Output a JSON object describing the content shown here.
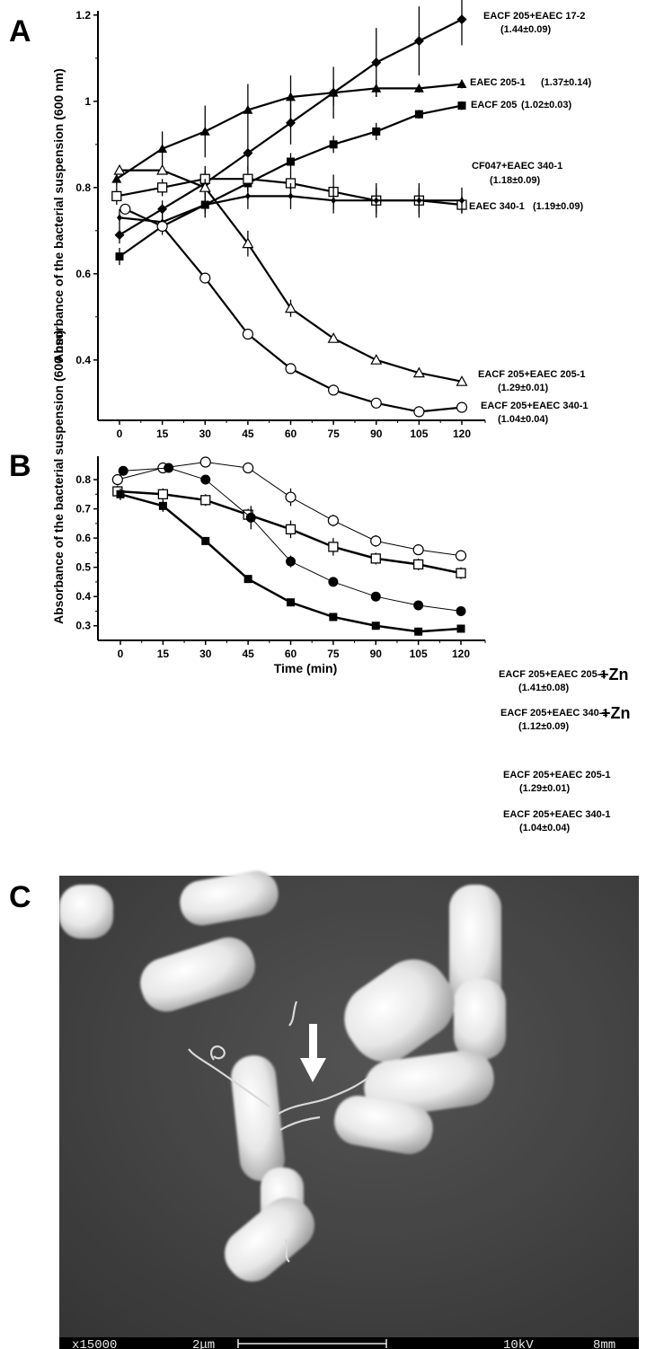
{
  "panels": {
    "a": {
      "letter": "A"
    },
    "b": {
      "letter": "B"
    },
    "c": {
      "letter": "C"
    }
  },
  "chart_data": [
    {
      "type": "line",
      "panel": "A",
      "ylabel": "Absorbance of the bacterial suspension (600 nm)",
      "xlabel": "",
      "x": [
        0,
        15,
        30,
        45,
        60,
        75,
        90,
        105,
        120
      ],
      "xlim": [
        -5,
        125
      ],
      "ylim": [
        0.26,
        1.21
      ],
      "yticks": [
        0.4,
        0.6,
        0.8,
        1,
        1.2
      ],
      "ytick_labels": [
        "0.4",
        "0.6",
        "0.8",
        "1",
        "1.2"
      ],
      "xticks": [
        0,
        15,
        30,
        45,
        60,
        75,
        90,
        105,
        120
      ],
      "xtick_labels": [
        "0",
        "15",
        "30",
        "45",
        "60",
        "75",
        "90",
        "105",
        "120"
      ],
      "series": [
        {
          "name": "EACF 205+EAEC 17-2",
          "note": "(1.44±0.09)",
          "marker": "diamond-filled",
          "x": [
            0,
            15,
            30,
            45,
            60,
            75,
            90,
            105,
            120
          ],
          "values": [
            0.69,
            0.75,
            0.81,
            0.88,
            0.95,
            1.02,
            1.09,
            1.14,
            1.19
          ],
          "err": [
            0.02,
            0.02,
            0.03,
            0.04,
            0.05,
            0.06,
            0.08,
            0.08,
            0.06
          ]
        },
        {
          "name": "EAEC 205-1",
          "note": "(1.37±0.14)",
          "marker": "triangle-filled",
          "x": [
            -1,
            15,
            30,
            45,
            60,
            75,
            90,
            105,
            120
          ],
          "values": [
            0.82,
            0.89,
            0.93,
            0.98,
            1.01,
            1.02,
            1.03,
            1.03,
            1.04
          ],
          "err": [
            0.02,
            0.04,
            0.06,
            0.06,
            0.05,
            0.03,
            0.02,
            0.01,
            0.01
          ]
        },
        {
          "name": "EACF 205",
          "note": "(1.02±0.03)",
          "marker": "square-filled",
          "x": [
            0,
            15,
            30,
            45,
            60,
            75,
            90,
            105,
            120
          ],
          "values": [
            0.64,
            0.71,
            0.76,
            0.81,
            0.86,
            0.9,
            0.93,
            0.97,
            0.99
          ],
          "err": [
            0.02,
            0.02,
            0.02,
            0.02,
            0.02,
            0.02,
            0.02,
            0.01,
            0.01
          ]
        },
        {
          "name": "CF047+EAEC 340-1",
          "note": "(1.18±0.09)",
          "marker": "square-open",
          "x": [
            -1,
            15,
            30,
            45,
            60,
            75,
            90,
            105,
            120
          ],
          "values": [
            0.78,
            0.8,
            0.82,
            0.82,
            0.81,
            0.79,
            0.77,
            0.77,
            0.76
          ],
          "err": [
            0.02,
            0.02,
            0.03,
            0.03,
            0.03,
            0.04,
            0.03,
            0.03,
            0.02
          ]
        },
        {
          "name": "EAEC 340-1",
          "note": "(1.19±0.09)",
          "marker": "diamond-small",
          "x": [
            0,
            15,
            30,
            45,
            60,
            75,
            90,
            105,
            120
          ],
          "values": [
            0.73,
            0.72,
            0.76,
            0.78,
            0.78,
            0.77,
            0.77,
            0.77,
            0.77
          ],
          "err": [
            0.02,
            0.02,
            0.03,
            0.03,
            0.03,
            0.03,
            0.04,
            0.04,
            0.03
          ]
        },
        {
          "name": "EACF 205+EAEC 205-1",
          "note": "(1.29±0.01)",
          "marker": "triangle-open",
          "x": [
            0,
            15,
            30,
            45,
            60,
            75,
            90,
            105,
            120
          ],
          "values": [
            0.84,
            0.84,
            0.8,
            0.67,
            0.52,
            0.45,
            0.4,
            0.37,
            0.35
          ],
          "err": [
            0.01,
            0.01,
            0.02,
            0.03,
            0.02,
            0.01,
            0.01,
            0.01,
            0.01
          ]
        },
        {
          "name": "EACF 205+EAEC 340-1",
          "note": "(1.04±0.04)",
          "marker": "circle-open",
          "x": [
            2,
            15,
            30,
            45,
            60,
            75,
            90,
            105,
            120
          ],
          "values": [
            0.75,
            0.71,
            0.59,
            0.46,
            0.38,
            0.33,
            0.3,
            0.28,
            0.29
          ],
          "err": [
            0.01,
            0.01,
            0.01,
            0.01,
            0.01,
            0.01,
            0.01,
            0.01,
            0.01
          ]
        }
      ]
    },
    {
      "type": "line",
      "panel": "B",
      "ylabel": "Absorbance of the bacterial suspension (600 nm)",
      "xlabel": "Time (min)",
      "x": [
        0,
        15,
        30,
        45,
        60,
        75,
        90,
        105,
        120
      ],
      "xlim": [
        -5,
        125
      ],
      "ylim": [
        0.25,
        0.88
      ],
      "yticks": [
        0.3,
        0.4,
        0.5,
        0.6,
        0.7,
        0.8
      ],
      "ytick_labels": [
        "0.3",
        "0.4",
        "0.5",
        "0.6",
        "0.7",
        "0.8"
      ],
      "xticks": [
        0,
        15,
        30,
        45,
        60,
        75,
        90,
        105,
        120
      ],
      "xtick_labels": [
        "0",
        "15",
        "30",
        "45",
        "60",
        "75",
        "90",
        "105",
        "120"
      ],
      "series": [
        {
          "name": "EACF 205+EAEC 205-1",
          "suffix": "+Zn",
          "note": "(1.41±0.08)",
          "marker": "circle-open",
          "stroke": 1,
          "x": [
            -1,
            15,
            30,
            45,
            60,
            75,
            90,
            105,
            120
          ],
          "values": [
            0.8,
            0.84,
            0.86,
            0.84,
            0.74,
            0.66,
            0.59,
            0.56,
            0.54
          ],
          "err": [
            0.01,
            0.01,
            0.01,
            0.01,
            0.03,
            0.02,
            0.02,
            0.01,
            0.01
          ]
        },
        {
          "name": "EACF 205+EAEC 340-1",
          "suffix": "+Zn",
          "note": "(1.12±0.09)",
          "marker": "square-open",
          "stroke": 2.5,
          "x": [
            -1,
            15,
            30,
            45,
            60,
            75,
            90,
            105,
            120
          ],
          "values": [
            0.76,
            0.75,
            0.73,
            0.68,
            0.63,
            0.57,
            0.53,
            0.51,
            0.48
          ],
          "err": [
            0.02,
            0.02,
            0.02,
            0.02,
            0.03,
            0.03,
            0.02,
            0.02,
            0.02
          ]
        },
        {
          "name": "EACF 205+EAEC 205-1",
          "suffix": "",
          "note": "(1.29±0.01)",
          "marker": "circle-filled",
          "stroke": 1,
          "x": [
            1,
            17,
            30,
            46,
            60,
            75,
            90,
            105,
            120
          ],
          "values": [
            0.83,
            0.84,
            0.8,
            0.67,
            0.52,
            0.45,
            0.4,
            0.37,
            0.35
          ],
          "err": [
            0.01,
            0.01,
            0.01,
            0.04,
            0.02,
            0.01,
            0.01,
            0.01,
            0.01
          ]
        },
        {
          "name": "EACF 205+EAEC 340-1",
          "suffix": "",
          "note": "(1.04±0.04)",
          "marker": "square-filled",
          "stroke": 2.5,
          "x": [
            0,
            15,
            30,
            45,
            60,
            75,
            90,
            105,
            120
          ],
          "values": [
            0.75,
            0.71,
            0.59,
            0.46,
            0.38,
            0.33,
            0.3,
            0.28,
            0.29
          ],
          "err": [
            0.02,
            0.02,
            0.01,
            0.01,
            0.01,
            0.01,
            0.01,
            0.01,
            0.01
          ]
        }
      ]
    }
  ],
  "micrograph": {
    "magnification": "x15000",
    "scale_bar": "2μm",
    "voltage": "10kV",
    "working_distance": "8mm"
  }
}
